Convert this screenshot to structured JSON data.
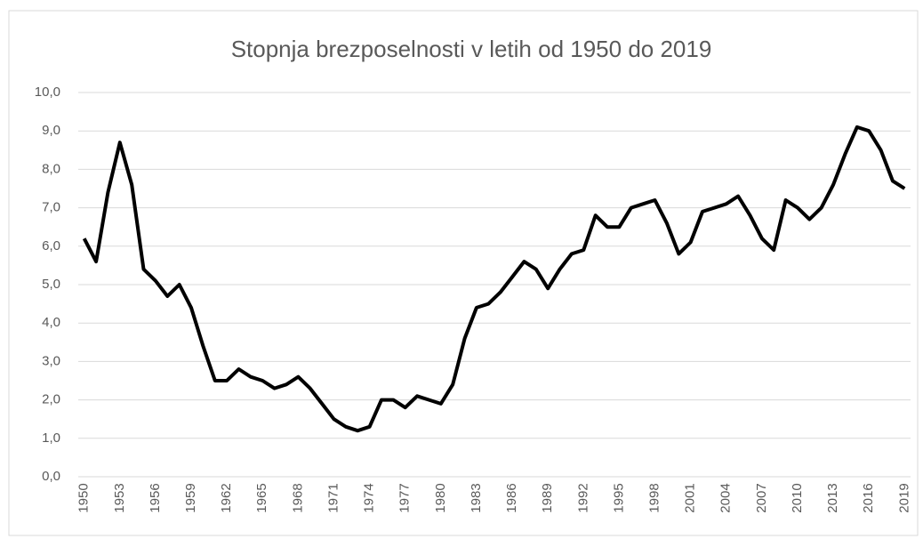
{
  "chart_data": {
    "type": "line",
    "title": "Stopnja brezposelnosti v letih od 1950 do 2019",
    "categories": [
      "1950",
      null,
      null,
      "1953",
      null,
      null,
      "1956",
      null,
      null,
      "1959",
      null,
      null,
      "1962",
      null,
      null,
      "1965",
      null,
      null,
      "1968",
      null,
      null,
      "1971",
      null,
      null,
      "1974",
      null,
      null,
      "1977",
      null,
      null,
      "1980",
      null,
      null,
      "1983",
      null,
      null,
      "1986",
      null,
      null,
      "1989",
      null,
      null,
      "1992",
      null,
      null,
      "1995",
      null,
      null,
      "1998",
      null,
      null,
      "2001",
      null,
      null,
      "2004",
      null,
      null,
      "2007",
      null,
      null,
      "2010",
      null,
      null,
      "2013",
      null,
      null,
      "2016",
      null,
      null,
      "2019"
    ],
    "series": [
      {
        "color": "#000000",
        "values": [
          6.2,
          5.6,
          7.4,
          8.7,
          7.6,
          5.4,
          5.1,
          4.7,
          5.0,
          4.4,
          3.4,
          2.5,
          2.5,
          2.8,
          2.6,
          2.5,
          2.3,
          2.4,
          2.6,
          2.3,
          1.9,
          1.5,
          1.3,
          1.2,
          1.3,
          2.0,
          2.0,
          1.8,
          2.1,
          2.0,
          1.9,
          2.4,
          3.6,
          4.4,
          4.5,
          4.8,
          5.2,
          5.6,
          5.4,
          4.9,
          5.4,
          5.8,
          5.9,
          6.8,
          6.5,
          6.5,
          7.0,
          7.1,
          7.2,
          6.6,
          5.8,
          6.1,
          6.9,
          7.0,
          7.1,
          7.3,
          6.8,
          6.2,
          5.9,
          7.2,
          7.0,
          6.7,
          7.0,
          7.6,
          8.4,
          9.1,
          9.0,
          8.5,
          7.7,
          7.5
        ]
      }
    ],
    "ylim": [
      0,
      10
    ],
    "yticks": [
      {
        "value": 0,
        "label": "0,0"
      },
      {
        "value": 1,
        "label": "1,0"
      },
      {
        "value": 2,
        "label": "2,0"
      },
      {
        "value": 3,
        "label": "3,0"
      },
      {
        "value": 4,
        "label": "4,0"
      },
      {
        "value": 5,
        "label": "5,0"
      },
      {
        "value": 6,
        "label": "6,0"
      },
      {
        "value": 7,
        "label": "7,0"
      },
      {
        "value": 8,
        "label": "8,0"
      },
      {
        "value": 9,
        "label": "9,0"
      },
      {
        "value": 10,
        "label": "10,0"
      }
    ],
    "grid": true
  }
}
